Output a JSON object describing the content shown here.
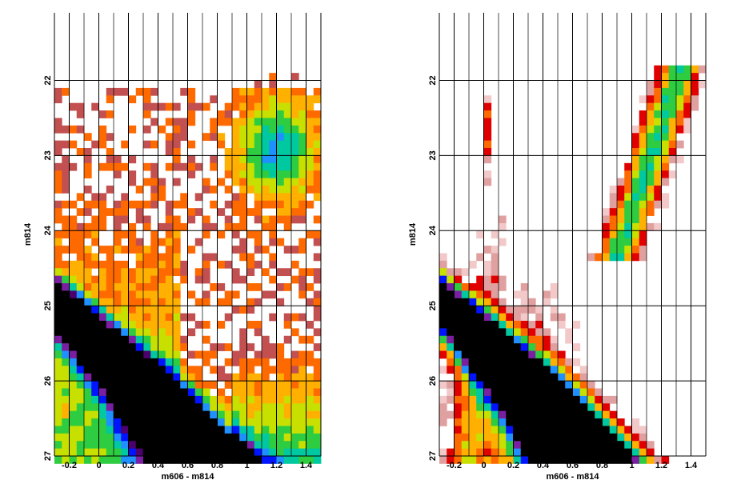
{
  "chart_data": [
    {
      "type": "heatmap",
      "xlabel": "m606 - m814",
      "ylabel": "m814",
      "xlim": [
        -0.3,
        1.5
      ],
      "ylim": [
        27,
        21.1
      ],
      "y_inverted": true,
      "grid": true,
      "x_ticks": [
        "-0.2",
        "0",
        "0.2",
        "0.4",
        "0.6",
        "0.8",
        "1",
        "1.2",
        "1.4"
      ],
      "y_ticks": [
        "22",
        "23",
        "24",
        "25",
        "26",
        "27"
      ],
      "bin_width": 0.05,
      "bin_height": 0.1,
      "color_scale": [
        "#c25050",
        "#ff6a00",
        "#ffb000",
        "#c8e000",
        "#2ecc40",
        "#00c8a0",
        "#1e90ff",
        "#0014ff",
        "#7a1fa2",
        "#4b006e",
        "#000000"
      ],
      "density_model": "sparse field population plus dense main sequence ridge"
    },
    {
      "type": "heatmap",
      "xlabel": "m606 - m814",
      "ylabel": "m814",
      "xlim": [
        -0.3,
        1.5
      ],
      "ylim": [
        27,
        21.1
      ],
      "y_inverted": true,
      "grid": true,
      "x_ticks": [
        "-0.2",
        "0",
        "0.2",
        "0.4",
        "0.6",
        "0.8",
        "1",
        "1.2",
        "1.4"
      ],
      "y_ticks": [
        "22",
        "23",
        "24",
        "25",
        "26",
        "27"
      ],
      "bin_width": 0.05,
      "bin_height": 0.1,
      "color_scale": [
        "#f2c8c8",
        "#e0a0a0",
        "#e00000",
        "#ff6a00",
        "#ffb000",
        "#c8e000",
        "#2ecc40",
        "#00c8a0",
        "#1e90ff",
        "#0014ff",
        "#7a1fa2",
        "#000000"
      ],
      "density_model": "main sequence ridge, blue plume branch and red giant branch"
    }
  ]
}
